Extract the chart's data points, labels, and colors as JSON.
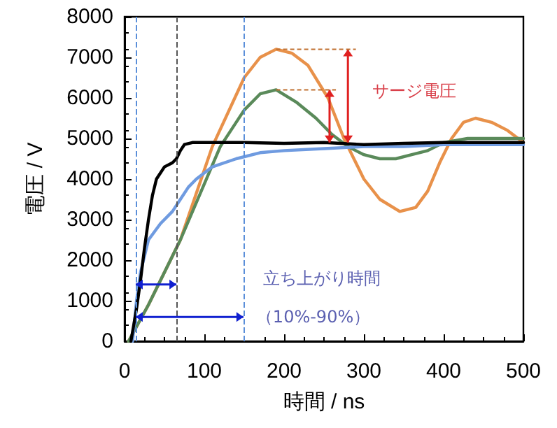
{
  "chart_data": {
    "type": "line",
    "xlabel": "時間 / ns",
    "ylabel": "電圧 / V",
    "xlim": [
      0,
      500
    ],
    "ylim": [
      0,
      8000
    ],
    "xticks": [
      0,
      100,
      200,
      300,
      400,
      500
    ],
    "yticks": [
      0,
      1000,
      2000,
      3000,
      4000,
      5000,
      6000,
      7000,
      8000
    ],
    "grid": false,
    "marker": "none",
    "line_style": "solid",
    "series": [
      {
        "color": "#e8914a",
        "x": [
          5,
          30,
          70,
          110,
          150,
          170,
          190,
          210,
          230,
          255,
          275,
          300,
          320,
          345,
          365,
          380,
          395,
          410,
          425,
          440,
          460,
          480,
          500
        ],
        "values": [
          0,
          900,
          2500,
          4800,
          6500,
          7000,
          7200,
          7100,
          6800,
          6000,
          5000,
          4000,
          3500,
          3200,
          3300,
          3700,
          4400,
          5000,
          5400,
          5500,
          5400,
          5200,
          4900
        ]
      },
      {
        "color": "#5a8a5a",
        "x": [
          5,
          30,
          70,
          120,
          150,
          170,
          190,
          215,
          240,
          260,
          280,
          300,
          320,
          340,
          360,
          380,
          400,
          430,
          460,
          500
        ],
        "values": [
          0,
          900,
          2500,
          4800,
          5700,
          6100,
          6200,
          5900,
          5500,
          5100,
          4800,
          4600,
          4500,
          4500,
          4600,
          4700,
          4900,
          5000,
          5000,
          5000
        ]
      },
      {
        "color": "#6f9be0",
        "x": [
          10,
          15,
          20,
          30,
          45,
          60,
          70,
          80,
          90,
          110,
          140,
          170,
          200,
          250,
          300,
          350,
          400,
          450,
          500
        ],
        "values": [
          0,
          1000,
          1700,
          2500,
          2900,
          3200,
          3500,
          3800,
          4000,
          4300,
          4500,
          4650,
          4700,
          4750,
          4800,
          4800,
          4850,
          4850,
          4850
        ]
      },
      {
        "color": "#000000",
        "x": [
          8,
          15,
          20,
          25,
          30,
          35,
          40,
          50,
          60,
          65,
          70,
          75,
          85,
          100,
          150,
          200,
          250,
          300,
          350,
          400,
          450,
          500
        ],
        "values": [
          0,
          800,
          1500,
          2300,
          3000,
          3600,
          4000,
          4300,
          4400,
          4500,
          4700,
          4850,
          4900,
          4900,
          4900,
          4880,
          4900,
          4850,
          4880,
          4900,
          4900,
          4900
        ]
      }
    ],
    "ref_lines": [
      {
        "axis": "x",
        "value": 14,
        "color": "#5b8fd9",
        "line_style": "dashed"
      },
      {
        "axis": "x",
        "value": 65,
        "color": "#555555",
        "line_style": "dashed"
      },
      {
        "axis": "x",
        "value": 149,
        "color": "#5b8fd9",
        "line_style": "dashed"
      }
    ],
    "annotations": [
      "サージ電圧",
      "立ち上がり時間",
      {
        "text": "（10%-90%）",
        "x": 149,
        "y": 600
      }
    ]
  }
}
